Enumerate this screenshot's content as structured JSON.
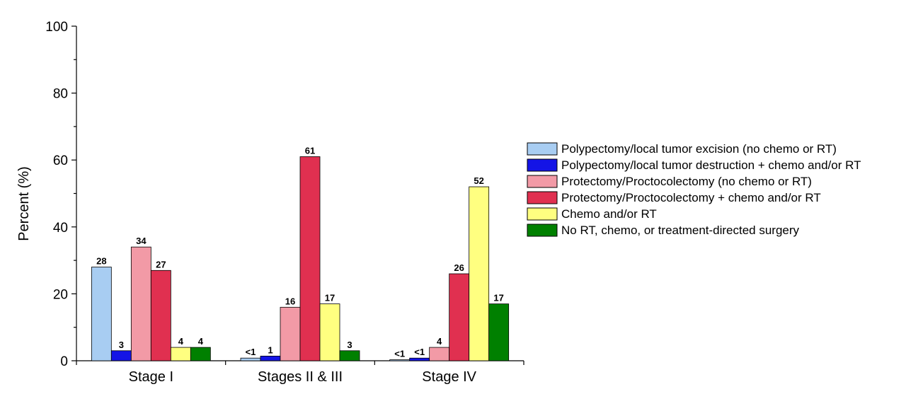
{
  "chart_data": {
    "type": "bar",
    "title": "",
    "xlabel": "",
    "ylabel": "Percent (%)",
    "ylim": [
      0,
      100
    ],
    "yticks": [
      0,
      20,
      40,
      60,
      80,
      100
    ],
    "categories": [
      "Stage I",
      "Stages II & III",
      "Stage IV"
    ],
    "legend_position": "right",
    "grid": false,
    "series": [
      {
        "name": "Polypectomy/local tumor excision (no chemo or RT)",
        "color": "#a8cdf2",
        "values": [
          28,
          0.8,
          0.3
        ],
        "labels": [
          "28",
          "<1",
          "<1"
        ]
      },
      {
        "name": "Polypectomy/local tumor destruction + chemo and/or RT",
        "color": "#1414e6",
        "values": [
          3,
          1.4,
          0.8
        ],
        "labels": [
          "3",
          "1",
          "<1"
        ]
      },
      {
        "name": "Protectomy/Proctocolectomy (no chemo or RT)",
        "color": "#f29aa6",
        "values": [
          34,
          16,
          4
        ],
        "labels": [
          "34",
          "16",
          "4"
        ]
      },
      {
        "name": "Protectomy/Proctocolectomy + chemo and/or RT",
        "color": "#e03050",
        "values": [
          27,
          61,
          26
        ],
        "labels": [
          "27",
          "61",
          "26"
        ]
      },
      {
        "name": "Chemo and/or RT",
        "color": "#ffff80",
        "values": [
          4,
          17,
          52
        ],
        "labels": [
          "4",
          "17",
          "52"
        ]
      },
      {
        "name": "No RT, chemo, or treatment-directed surgery",
        "color": "#008000",
        "values": [
          4,
          3,
          17
        ],
        "labels": [
          "4",
          "3",
          "17"
        ]
      }
    ]
  }
}
